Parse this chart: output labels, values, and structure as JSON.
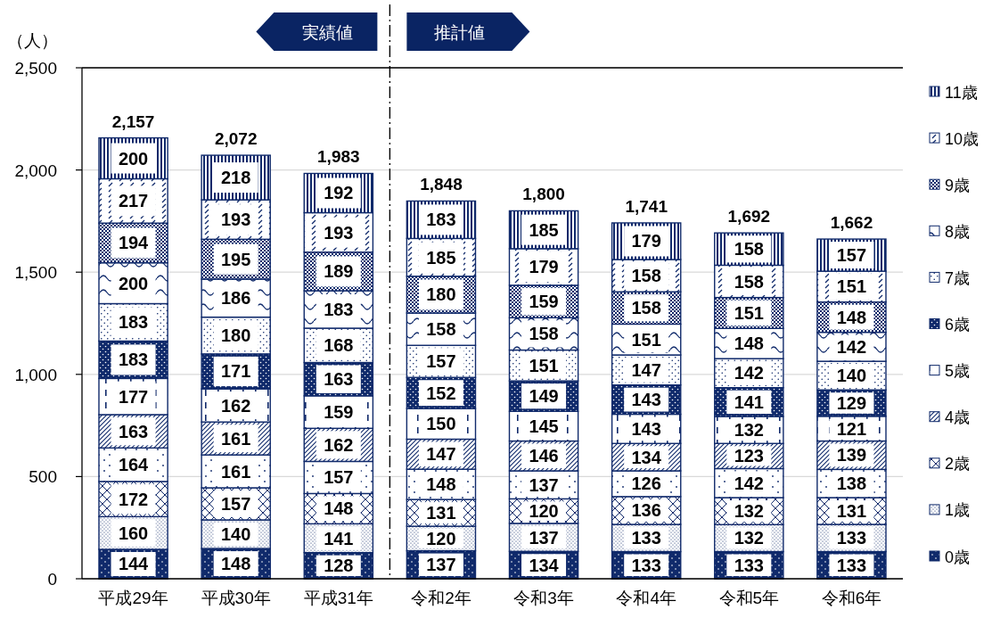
{
  "chart_data": {
    "type": "bar",
    "stacked": true,
    "ylabel": "（人）",
    "categories": [
      "平成29年",
      "平成30年",
      "平成31年",
      "令和2年",
      "令和3年",
      "令和4年",
      "令和5年",
      "令和6年"
    ],
    "series": [
      {
        "name": "0歳",
        "color": "#102a6b",
        "values": [
          144,
          148,
          128,
          137,
          134,
          133,
          133,
          133
        ]
      },
      {
        "name": "1歳",
        "color": "#102a6b",
        "values": [
          160,
          140,
          141,
          120,
          137,
          133,
          132,
          133
        ]
      },
      {
        "name": "2歳",
        "color": "#102a6b",
        "values": [
          172,
          157,
          148,
          131,
          120,
          136,
          132,
          131
        ]
      },
      {
        "color": "#102a6b",
        "values": [
          164,
          161,
          157,
          148,
          137,
          126,
          142,
          138
        ]
      },
      {
        "name": "4歳",
        "color": "#102a6b",
        "values": [
          163,
          161,
          162,
          147,
          146,
          134,
          123,
          139
        ]
      },
      {
        "name": "5歳",
        "color": "#102a6b",
        "values": [
          177,
          162,
          159,
          150,
          145,
          143,
          132,
          121
        ]
      },
      {
        "name": "6歳",
        "color": "#102a6b",
        "values": [
          183,
          171,
          163,
          152,
          149,
          143,
          141,
          129
        ]
      },
      {
        "name": "7歳",
        "color": "#102a6b",
        "values": [
          183,
          180,
          168,
          157,
          151,
          147,
          142,
          140
        ]
      },
      {
        "name": "8歳",
        "color": "#102a6b",
        "values": [
          200,
          186,
          183,
          158,
          158,
          151,
          148,
          142
        ]
      },
      {
        "name": "9歳",
        "color": "#102a6b",
        "values": [
          194,
          195,
          189,
          180,
          159,
          158,
          151,
          148
        ]
      },
      {
        "name": "10歳",
        "color": "#102a6b",
        "values": [
          217,
          193,
          193,
          185,
          179,
          158,
          158,
          151
        ]
      },
      {
        "name": "11歳",
        "color": "#102a6b",
        "values": [
          200,
          218,
          192,
          183,
          185,
          179,
          158,
          157
        ]
      }
    ],
    "ylim": [
      0,
      2500
    ],
    "yticks": [
      0,
      500,
      {
        "value": 1000,
        "label": "1,000"
      },
      {
        "value": 1500,
        "label": "1,500"
      },
      {
        "value": 2000,
        "label": "2,000"
      },
      {
        "value": 2500,
        "label": "2,500"
      }
    ],
    "grid": "y",
    "legend": "right",
    "data_labels": true,
    "totals": [
      "2,157",
      "2,072",
      "1,983",
      "1,848",
      "1,800",
      "1,741",
      "1,692",
      "1,662"
    ],
    "annotations": [
      "実績値",
      "推計値"
    ]
  }
}
